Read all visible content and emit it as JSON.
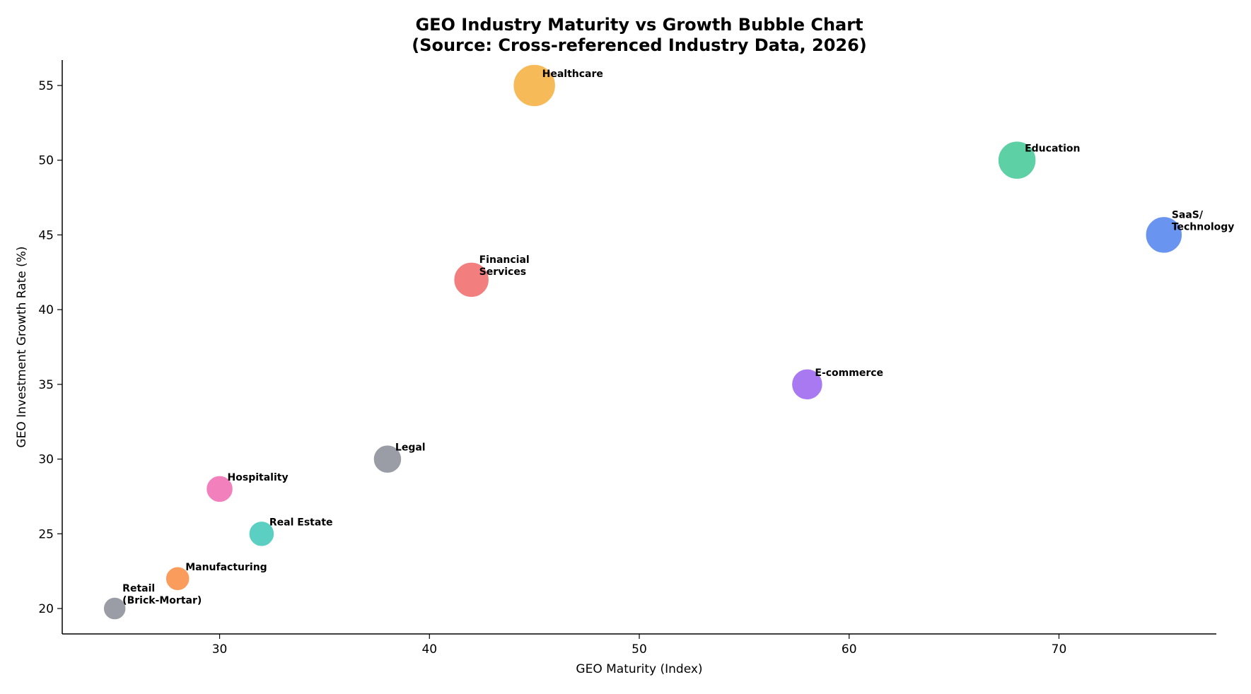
{
  "chart_data": {
    "type": "scatter",
    "title_lines": [
      "GEO Industry Maturity vs Growth Bubble Chart",
      "(Source: Cross-referenced Industry Data, 2026)"
    ],
    "xlabel": "GEO Maturity (Index)",
    "ylabel": "GEO Investment Growth Rate (%)",
    "xlim": [
      22.5,
      77.5
    ],
    "ylim": [
      18.3,
      56.7
    ],
    "xticks": [
      30,
      40,
      50,
      60,
      70
    ],
    "yticks": [
      20,
      25,
      30,
      35,
      40,
      45,
      50,
      55
    ],
    "grid": false,
    "legend": "none",
    "points": [
      {
        "label": "Healthcare",
        "x": 45,
        "y": 55,
        "size": 30,
        "color": "#F5B041"
      },
      {
        "label": "Education",
        "x": 68,
        "y": 50,
        "size": 27,
        "color": "#48C999"
      },
      {
        "label": "SaaS/\nTechnology",
        "x": 75,
        "y": 45,
        "size": 26,
        "color": "#5486EE"
      },
      {
        "label": "Financial\nServices",
        "x": 42,
        "y": 42,
        "size": 25,
        "color": "#F16C6C"
      },
      {
        "label": "E-commerce",
        "x": 58,
        "y": 35,
        "size": 22,
        "color": "#9C66EE"
      },
      {
        "label": "Legal",
        "x": 38,
        "y": 30,
        "size": 20,
        "color": "#8C909A"
      },
      {
        "label": "Hospitality",
        "x": 30,
        "y": 28,
        "size": 19,
        "color": "#F06EB4"
      },
      {
        "label": "Real Estate",
        "x": 32,
        "y": 25,
        "size": 18,
        "color": "#44CABA"
      },
      {
        "label": "Manufacturing",
        "x": 28,
        "y": 22,
        "size": 17,
        "color": "#F98E45"
      },
      {
        "label": "Retail\n(Brick-Mortar)",
        "x": 25,
        "y": 20,
        "size": 16,
        "color": "#8C909A"
      }
    ]
  }
}
